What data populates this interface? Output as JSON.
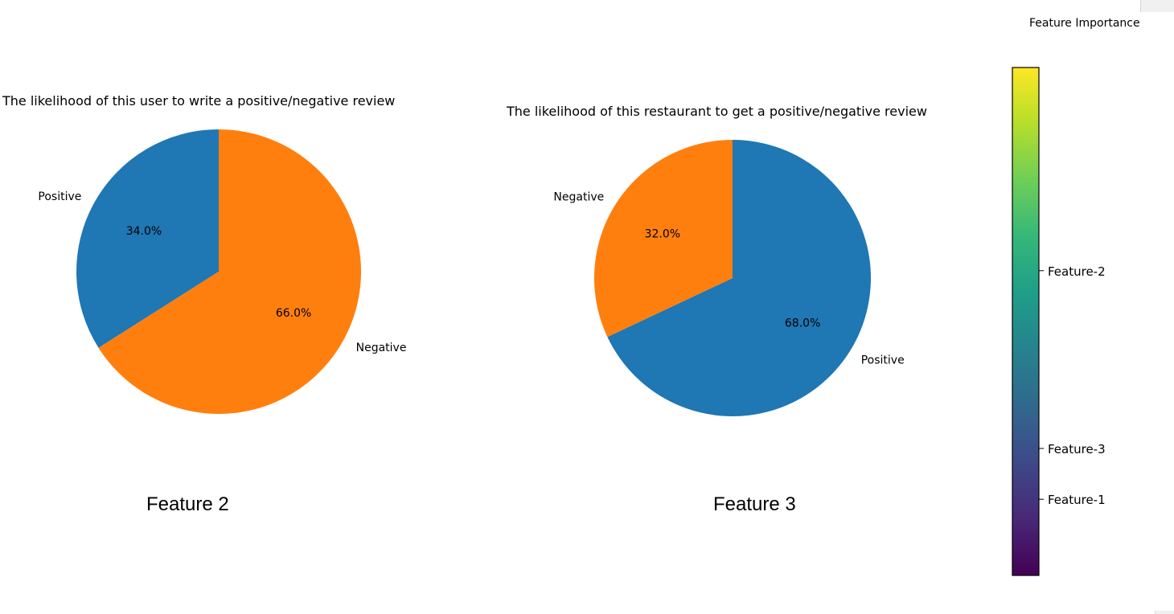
{
  "chart_data": [
    {
      "type": "pie",
      "title": "The likelihood of this user to write a positive/negative review",
      "caption": "Feature 2",
      "labels": [
        "Positive",
        "Negative"
      ],
      "values": [
        34.0,
        66.0
      ],
      "pct_labels": [
        "34.0%",
        "66.0%"
      ],
      "colors": [
        "#1f77b4",
        "#ff7f0e"
      ],
      "start_angle_deg": 90,
      "direction": "counterclockwise"
    },
    {
      "type": "pie",
      "title": "The likelihood of this restaurant to get a positive/negative review",
      "caption": "Feature 3",
      "labels": [
        "Positive",
        "Negative"
      ],
      "values": [
        68.0,
        32.0
      ],
      "pct_labels": [
        "68.0%",
        "32.0%"
      ],
      "colors": [
        "#1f77b4",
        "#ff7f0e"
      ],
      "start_angle_deg": 90,
      "direction": "clockwise"
    },
    {
      "type": "heatmap",
      "title": "Feature Importance",
      "colormap": "viridis",
      "ticks": [
        {
          "label": "Feature-2",
          "value": 0.6
        },
        {
          "label": "Feature-3",
          "value": 0.25
        },
        {
          "label": "Feature-1",
          "value": 0.15
        }
      ],
      "range": [
        0,
        1
      ]
    }
  ]
}
